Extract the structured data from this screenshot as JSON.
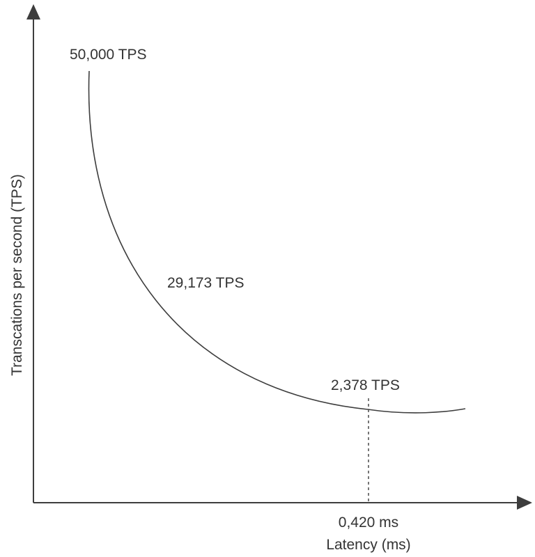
{
  "chart_data": {
    "type": "line",
    "title": "",
    "xlabel": "Latency (ms)",
    "ylabel": "Transcations per second (TPS)",
    "grid": false,
    "legend": "none",
    "axis_ticks": "none",
    "annotations": [
      {
        "text": "50,000 TPS",
        "refers_to": "curve-start"
      },
      {
        "text": "29,173 TPS",
        "refers_to": "curve-middle"
      },
      {
        "text": "2,378 TPS",
        "refers_to": "curve-near-end"
      },
      {
        "text": "0,420 ms",
        "refers_to": "marked-latency"
      }
    ],
    "marked_point": {
      "x_label": "0,420 ms",
      "y_label": "2,378 TPS",
      "style": "dashed-vertical-guide"
    },
    "series": [
      {
        "points_tps": [
          50000,
          29173,
          2378
        ],
        "shape": "decreasing-convex"
      }
    ],
    "colors": {
      "line": "#3d3d3d",
      "text": "#333333"
    }
  }
}
